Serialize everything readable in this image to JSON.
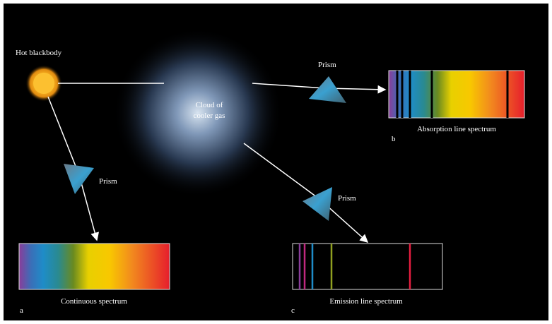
{
  "source": {
    "label": "Hot blackbody"
  },
  "cloud": {
    "label_lines": [
      "Cloud of",
      "cooler gas"
    ]
  },
  "panels": [
    {
      "letter": "a",
      "caption": "Continuous spectrum",
      "prism": "Prism"
    },
    {
      "letter": "b",
      "caption": "Absorption line spectrum",
      "prism": "Prism"
    },
    {
      "letter": "c",
      "caption": "Emission line spectrum",
      "prism": "Prism"
    }
  ]
}
